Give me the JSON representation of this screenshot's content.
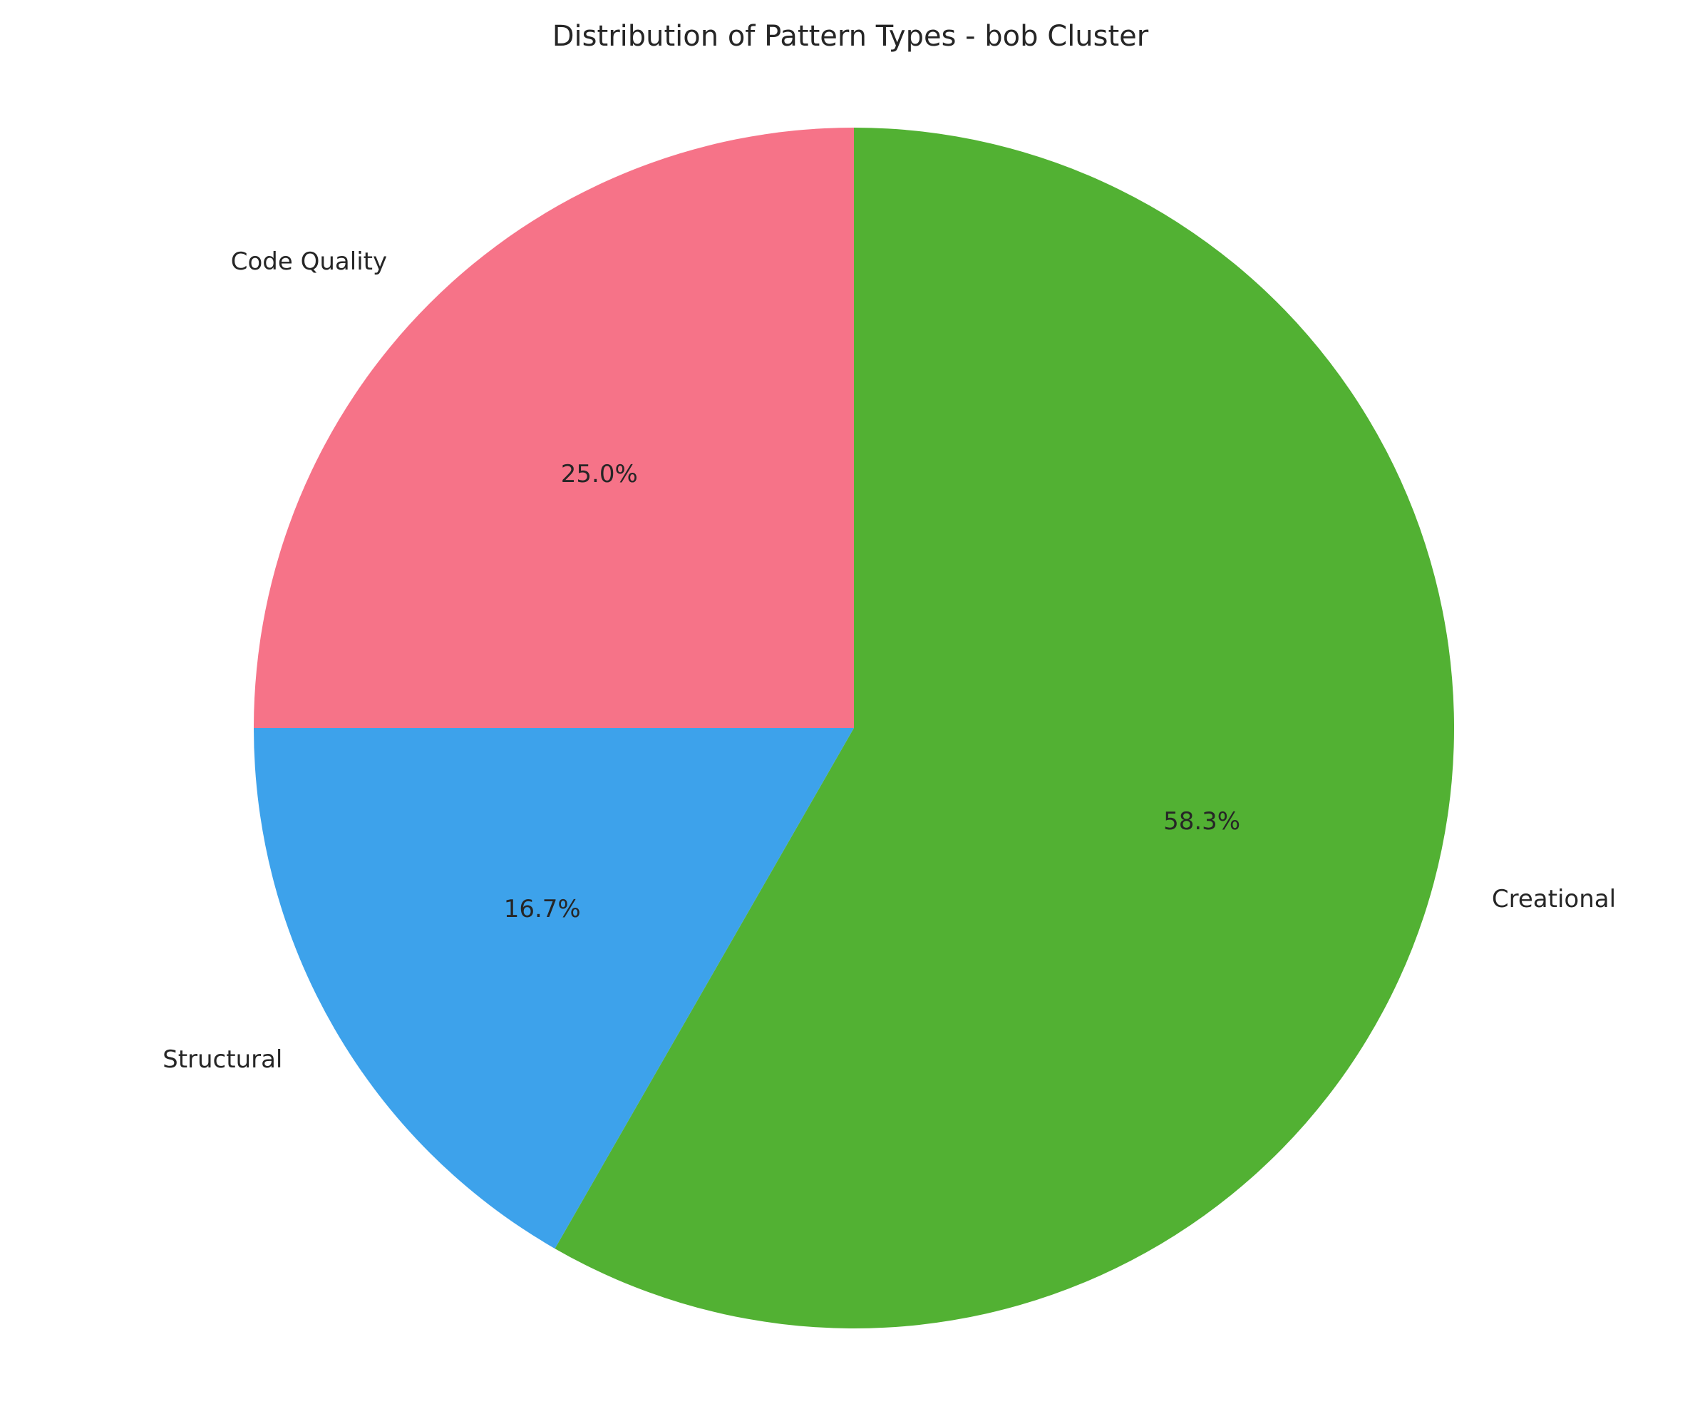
{
  "chart_data": {
    "type": "pie",
    "title": "Distribution of Pattern Types - bob Cluster",
    "slices": [
      {
        "label": "Code Quality",
        "value": 25.0,
        "display": "25.0%",
        "color": "#f67388"
      },
      {
        "label": "Structural",
        "value": 16.7,
        "display": "16.7%",
        "color": "#3da2eb"
      },
      {
        "label": "Creational",
        "value": 58.3,
        "display": "58.3%",
        "color": "#52b133"
      }
    ],
    "start_angle_deg": 90,
    "direction": "counterclockwise",
    "legend": "none"
  }
}
